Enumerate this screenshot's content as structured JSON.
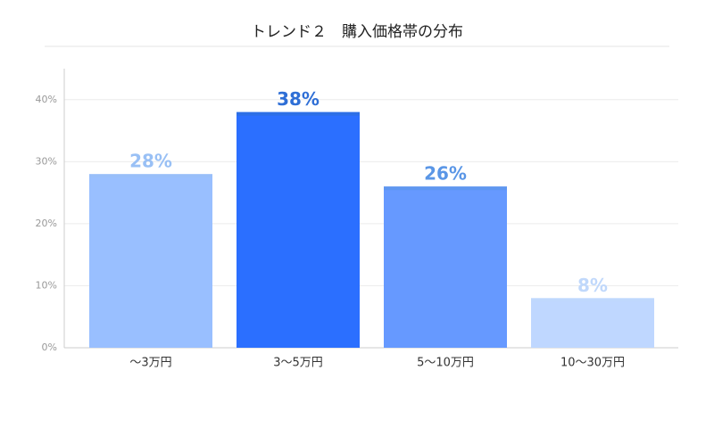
{
  "chart_data": {
    "type": "bar",
    "title": "トレンド２　購入価格帯の分布",
    "categories": [
      "〜3万円",
      "3〜5万円",
      "5〜10万円",
      "10〜30万円"
    ],
    "values": [
      28,
      38,
      26,
      8
    ],
    "value_labels": [
      "28%",
      "38%",
      "26%",
      "8%"
    ],
    "colors": [
      "#99bfff",
      "#2b6fff",
      "#6699ff",
      "#bfd7ff"
    ],
    "label_colors": [
      "#99c0f5",
      "#2f6fd6",
      "#5a96e6",
      "#c0d8fb"
    ],
    "ylim": [
      0,
      45
    ],
    "yticks": [
      {
        "value": 0,
        "label": "0%"
      },
      {
        "value": 10,
        "label": "10%"
      },
      {
        "value": 20,
        "label": "20%"
      },
      {
        "value": 30,
        "label": "30%"
      },
      {
        "value": 40,
        "label": "40%"
      }
    ],
    "grid": true
  }
}
